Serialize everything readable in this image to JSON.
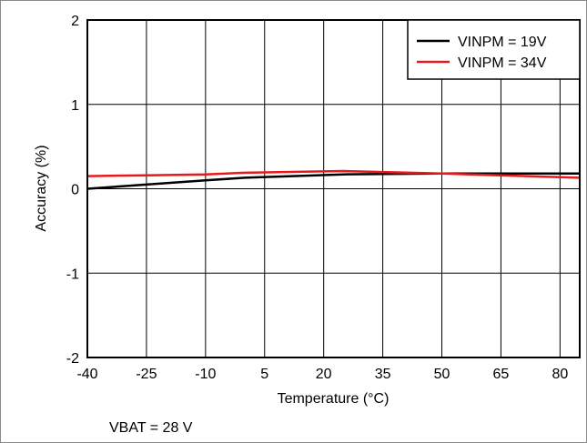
{
  "chart_data": {
    "type": "line",
    "xlabel": "Temperature (°C)",
    "ylabel": "Accuracy (%)",
    "xlim": [
      -40,
      85
    ],
    "ylim": [
      -2,
      2
    ],
    "x_ticks": [
      "-40",
      "-25",
      "-10",
      "5",
      "20",
      "35",
      "50",
      "65",
      "80"
    ],
    "y_ticks": [
      "-2",
      "-1",
      "0",
      "1",
      "2"
    ],
    "grid": true,
    "legend_position": "top-right",
    "series": [
      {
        "name": "VINPM = 19V",
        "color": "#000000",
        "x": [
          -40,
          -25,
          -10,
          0,
          25,
          50,
          85
        ],
        "y": [
          0.0,
          0.05,
          0.1,
          0.13,
          0.17,
          0.18,
          0.18
        ]
      },
      {
        "name": "VINPM = 34V",
        "color": "#e8191c",
        "x": [
          -40,
          -25,
          -10,
          0,
          25,
          50,
          85
        ],
        "y": [
          0.15,
          0.16,
          0.17,
          0.19,
          0.21,
          0.18,
          0.13
        ]
      }
    ],
    "annotation": "VBAT = 28 V"
  }
}
